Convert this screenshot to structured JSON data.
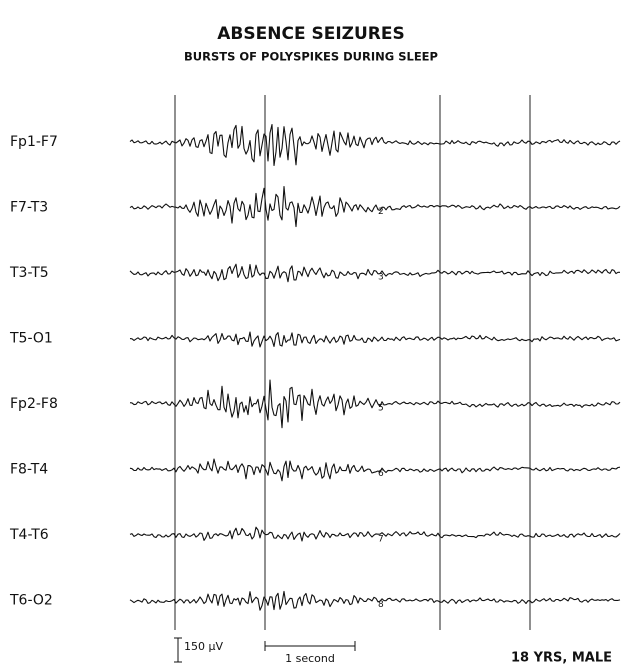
{
  "title": "ABSENCE SEIZURES",
  "subtitle": "BURSTS OF POLYSPIKES DURING SLEEP",
  "channels": [
    {
      "label": "Fp1-F7"
    },
    {
      "label": "F7-T3",
      "marker": "2"
    },
    {
      "label": "T3-T5",
      "marker": "3"
    },
    {
      "label": "T5-O1"
    },
    {
      "label": "Fp2-F8",
      "marker": "5"
    },
    {
      "label": "F8-T4",
      "marker": "6"
    },
    {
      "label": "T4-T6",
      "marker": "7"
    },
    {
      "label": "T6-O2",
      "marker": "8"
    }
  ],
  "amplitude_scale": "150 µV",
  "time_scale": "1 second",
  "patient": "18 YRS, MALE"
}
